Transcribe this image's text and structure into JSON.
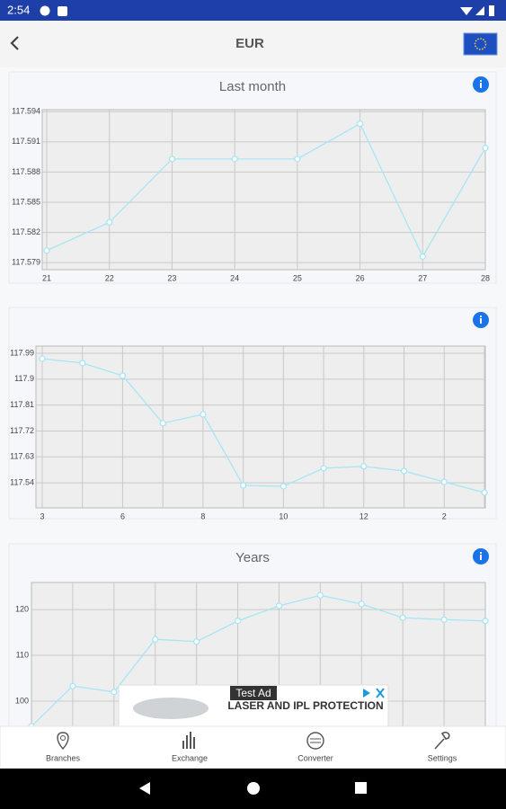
{
  "status_bar": {
    "time": "2:54"
  },
  "header": {
    "title": "EUR"
  },
  "chart_data": [
    {
      "type": "line",
      "title": "Last month",
      "categories": [
        "21",
        "22",
        "23",
        "24",
        "25",
        "26",
        "27",
        "28"
      ],
      "values": [
        117.5802,
        117.583,
        117.5893,
        117.5893,
        117.5893,
        117.5928,
        117.5796,
        117.5904
      ],
      "color": "#a6e6f5",
      "ylim": [
        117.5783,
        117.5942
      ],
      "yticks": [
        117.579,
        117.582,
        117.585,
        117.588,
        117.591,
        117.594
      ],
      "grid": true
    },
    {
      "type": "line",
      "categories": [
        "3",
        null,
        "6",
        null,
        "8",
        null,
        "10",
        null,
        "12",
        null,
        "2",
        null
      ],
      "values": [
        117.971,
        117.956,
        117.912,
        117.747,
        117.778,
        117.531,
        117.528,
        117.591,
        117.597,
        117.581,
        117.543,
        117.506
      ],
      "color": "#a6e6f5",
      "ylim": [
        117.453,
        118.015
      ],
      "yticks": [
        117.54,
        117.63,
        117.72,
        117.81,
        117.9,
        117.99
      ],
      "grid": true
    },
    {
      "type": "line",
      "title": "Years",
      "categories": [
        null,
        null,
        null,
        null,
        null,
        null,
        null,
        null,
        null,
        null,
        null,
        null
      ],
      "values": [
        94.5,
        103.3,
        102,
        113.5,
        113,
        117.5,
        120.8,
        123.1,
        121.2,
        118.2,
        117.8,
        117.5
      ],
      "color": "#a6e6f5",
      "ylim": [
        90,
        125.9
      ],
      "yticks": [
        100,
        110,
        120
      ],
      "grid": true
    }
  ],
  "ad": {
    "badge": "Test Ad",
    "text": "LASER AND IPL PROTECTION"
  },
  "nav": [
    "Branches",
    "Exchange",
    "Converter",
    "Settings"
  ]
}
